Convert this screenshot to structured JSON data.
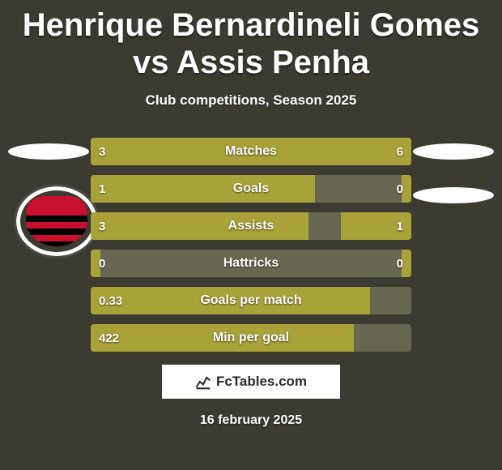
{
  "background_color": "#3b3b32",
  "title": {
    "text": "Henrique Bernardineli Gomes vs Assis Penha",
    "color": "#ffffff",
    "fontsize": 40
  },
  "subtitle": {
    "text": "Club competitions, Season 2025",
    "color": "#ffffff",
    "fontsize": 17
  },
  "bar_colors": {
    "track": "#676752",
    "left": "#a8a239",
    "right": "#a8a239",
    "label_fontsize": 16,
    "value_fontsize": 15
  },
  "stats": [
    {
      "label": "Matches",
      "left_value": "3",
      "right_value": "6",
      "left_pct": 33.3,
      "right_pct": 66.7
    },
    {
      "label": "Goals",
      "left_value": "1",
      "right_value": "0",
      "left_pct": 70.0,
      "right_pct": 3.0
    },
    {
      "label": "Assists",
      "left_value": "3",
      "right_value": "1",
      "left_pct": 68.0,
      "right_pct": 22.0
    },
    {
      "label": "Hattricks",
      "left_value": "0",
      "right_value": "0",
      "left_pct": 3.0,
      "right_pct": 3.0
    },
    {
      "label": "Goals per match",
      "left_value": "0.33",
      "right_value": "",
      "left_pct": 87.0,
      "right_pct": 0.0
    },
    {
      "label": "Min per goal",
      "left_value": "422",
      "right_value": "",
      "left_pct": 82.0,
      "right_pct": 0.0
    }
  ],
  "branding": {
    "text": "FcTables.com",
    "fontsize": 17
  },
  "date": {
    "text": "16 february 2025",
    "fontsize": 16
  }
}
